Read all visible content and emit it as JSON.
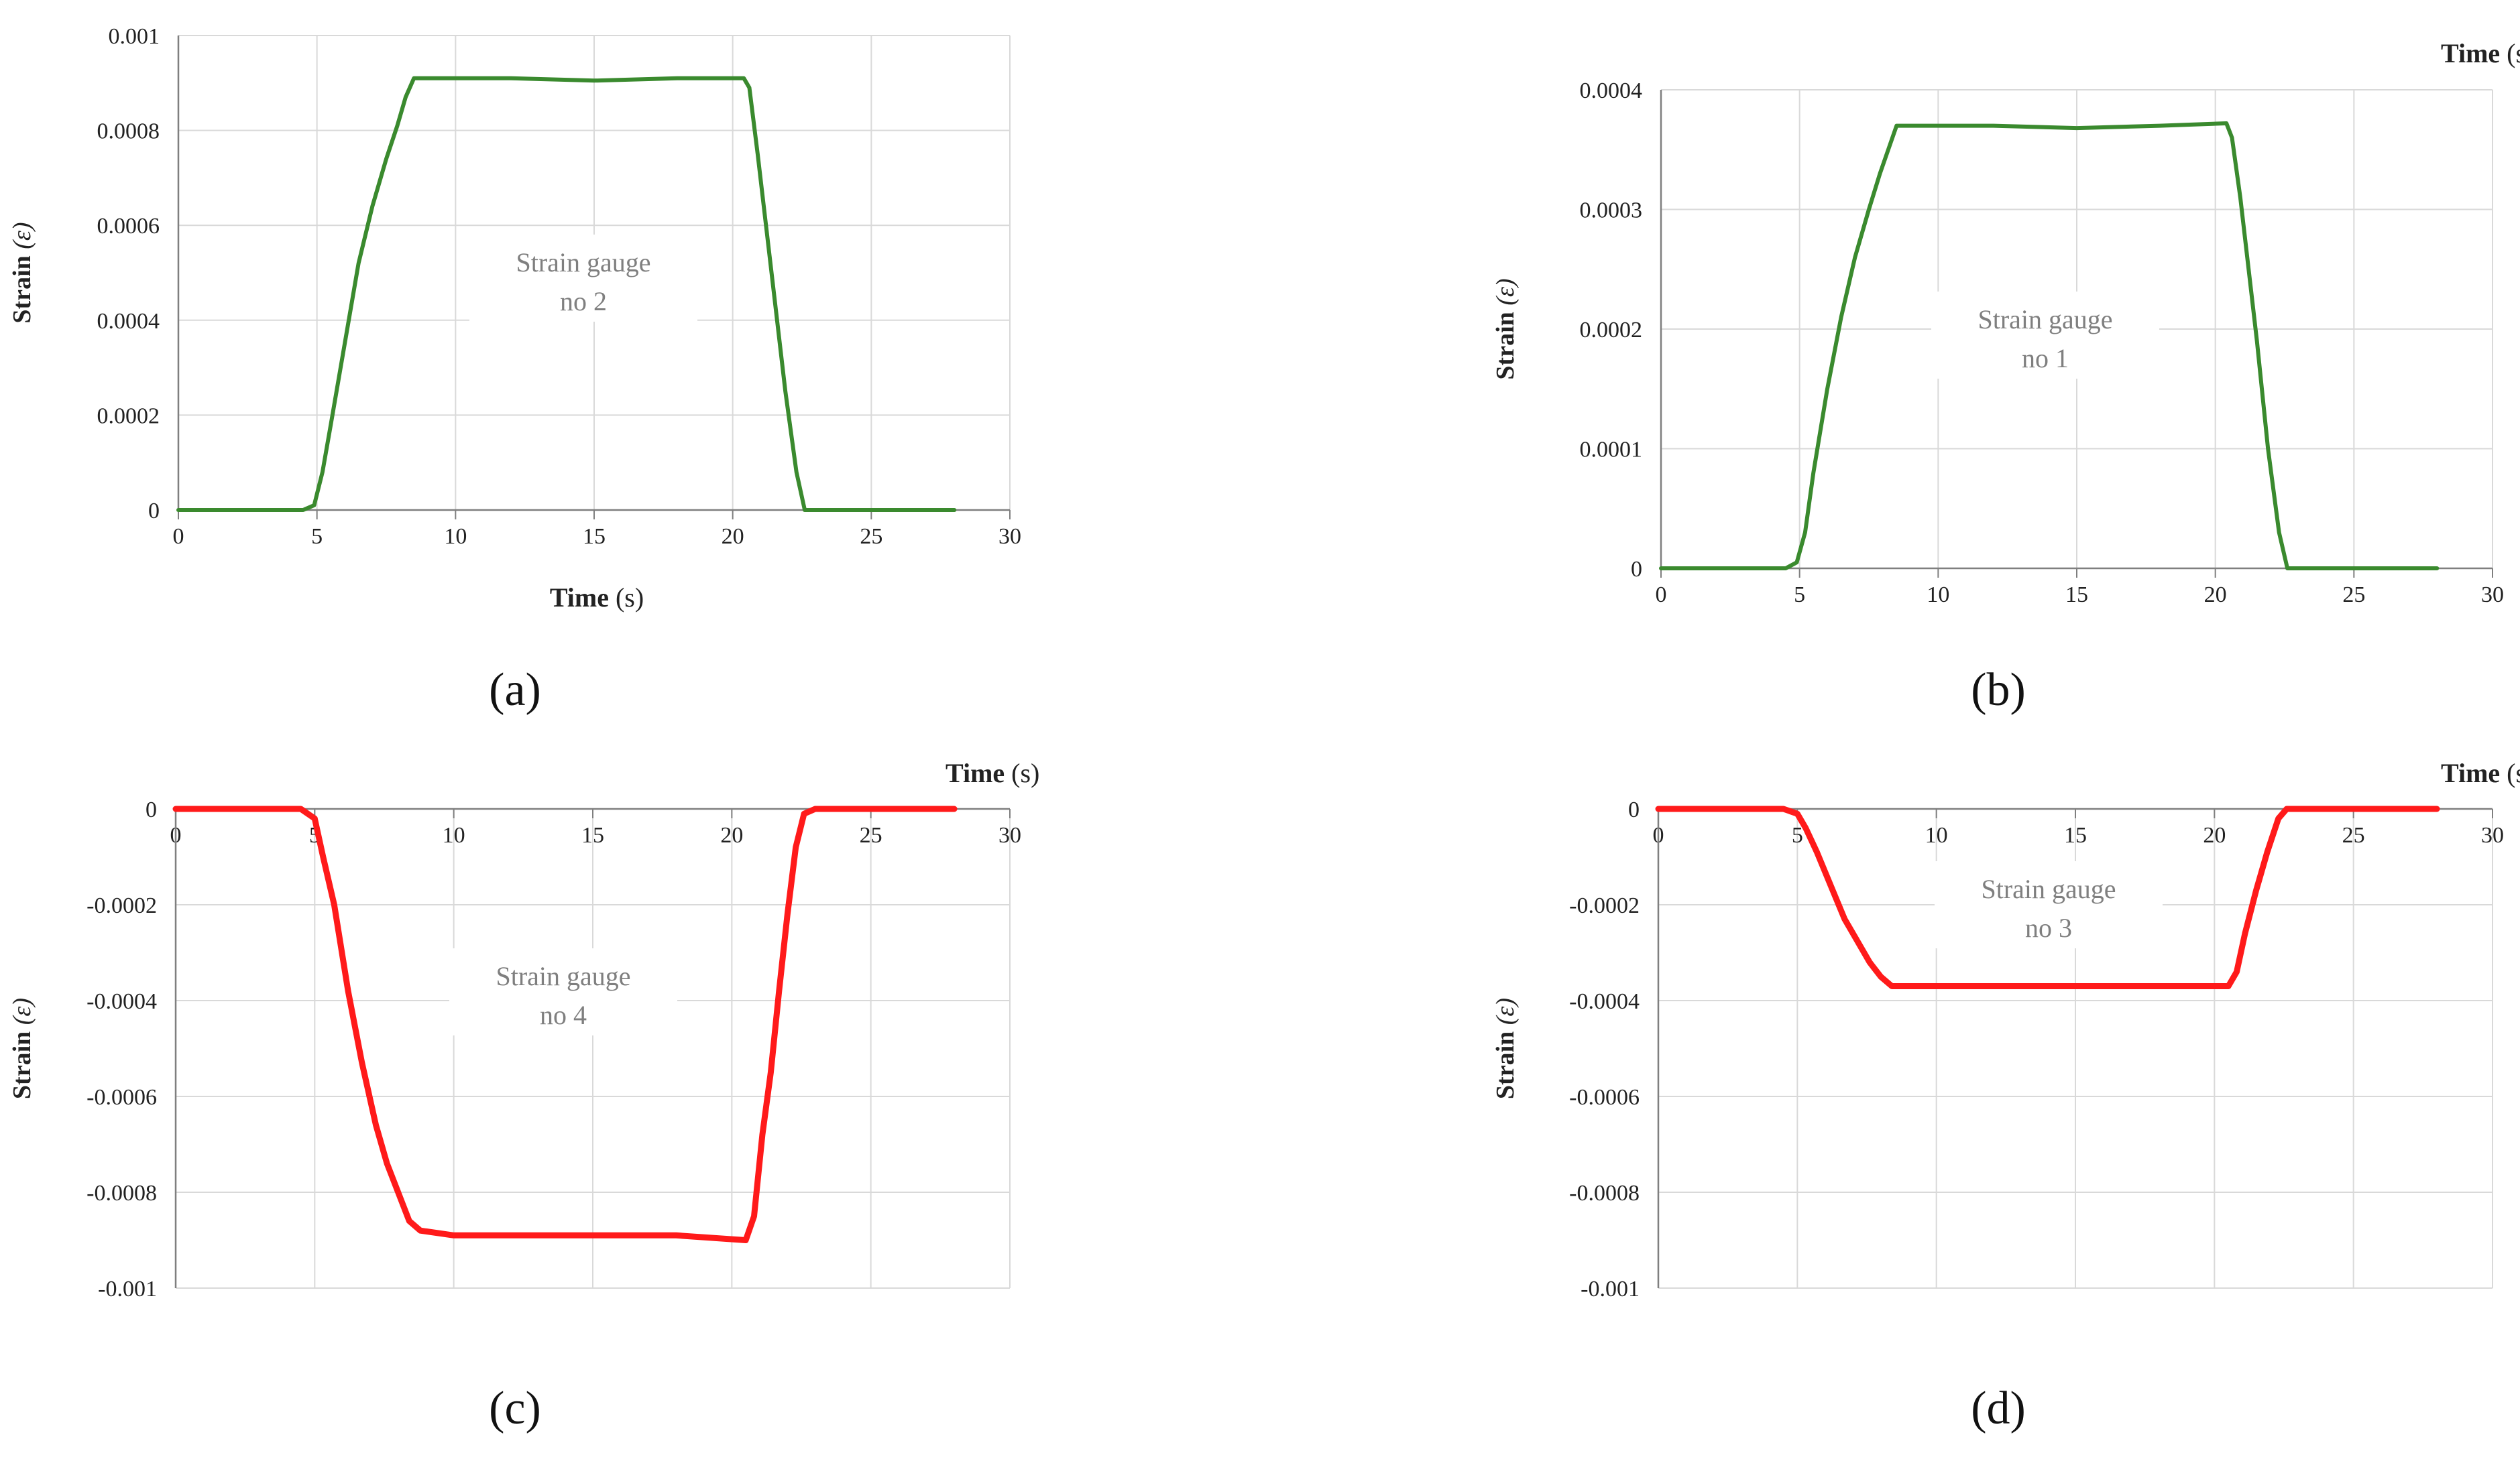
{
  "colors": {
    "green": "#3a8a2e",
    "red": "#ff1a1a",
    "grid": "#d9d9d9",
    "axis": "#7f7f7f"
  },
  "captions": [
    "(a)",
    "(b)",
    "(c)",
    "(d)"
  ],
  "chart_data": [
    {
      "type": "line",
      "xlabel": "Time (s)",
      "xlabel_bold": "Time",
      "xlabel_unit": "(s)",
      "ylabel": "Strain (ε)",
      "ylabel_bold": "Strain",
      "ylabel_unit": "(ε)",
      "annotation": [
        "Strain gauge",
        "no 2"
      ],
      "xlim": [
        0,
        30
      ],
      "ylim": [
        0,
        0.001
      ],
      "x_ticks": [
        "0",
        "5",
        "10",
        "15",
        "20",
        "25",
        "30"
      ],
      "y_ticks": [
        "0",
        "0.0002",
        "0.0004",
        "0.0006",
        "0.0008",
        "0.001"
      ],
      "grid": true,
      "color": "green",
      "series": [
        {
          "x": [
            0,
            4.5,
            4.9,
            5.2,
            5.5,
            6.0,
            6.5,
            7.0,
            7.5,
            7.9,
            8.2,
            8.5,
            9.0,
            12,
            15,
            18,
            20.4,
            20.6,
            20.9,
            21.2,
            21.5,
            21.9,
            22.3,
            22.6,
            23,
            25,
            28
          ],
          "y": [
            0,
            0,
            1e-05,
            8e-05,
            0.00018,
            0.00035,
            0.00052,
            0.00064,
            0.00074,
            0.00081,
            0.00087,
            0.00091,
            0.00091,
            0.00091,
            0.000905,
            0.00091,
            0.00091,
            0.00089,
            0.00075,
            0.0006,
            0.00045,
            0.00025,
            8e-05,
            0,
            0,
            0,
            0
          ]
        }
      ]
    },
    {
      "type": "line",
      "xlabel": "Time (s)",
      "xlabel_bold": "Time",
      "xlabel_unit": "(s)",
      "ylabel": "Strain (ε)",
      "ylabel_bold": "Strain",
      "ylabel_unit": "(ε)",
      "annotation": [
        "Strain gauge",
        "no 1"
      ],
      "xlim": [
        0,
        30
      ],
      "ylim": [
        0,
        0.0004
      ],
      "x_ticks": [
        "0",
        "5",
        "10",
        "15",
        "20",
        "25",
        "30"
      ],
      "y_ticks": [
        "0",
        "0.0001",
        "0.0002",
        "0.0003",
        "0.0004"
      ],
      "grid": true,
      "color": "green",
      "series": [
        {
          "x": [
            0,
            4.5,
            4.9,
            5.2,
            5.5,
            6.0,
            6.5,
            7.0,
            7.5,
            7.9,
            8.2,
            8.5,
            9.0,
            12,
            15,
            18,
            20.4,
            20.6,
            20.9,
            21.2,
            21.5,
            21.9,
            22.3,
            22.6,
            23,
            25,
            28
          ],
          "y": [
            0,
            0,
            5e-06,
            3e-05,
            8e-05,
            0.00015,
            0.00021,
            0.00026,
            0.0003,
            0.00033,
            0.00035,
            0.00037,
            0.00037,
            0.00037,
            0.000368,
            0.00037,
            0.000372,
            0.00036,
            0.00031,
            0.00025,
            0.00019,
            0.0001,
            3e-05,
            0,
            0,
            0,
            0
          ]
        }
      ]
    },
    {
      "type": "line",
      "xlabel": "Time (s)",
      "xlabel_bold": "Time",
      "xlabel_unit": "(s)",
      "ylabel": "Strain (ε)",
      "ylabel_bold": "Strain",
      "ylabel_unit": "(ε)",
      "annotation": [
        "Strain gauge",
        "no 4"
      ],
      "xlim": [
        0,
        30
      ],
      "ylim": [
        -0.001,
        0
      ],
      "x_ticks": [
        "0",
        "5",
        "10",
        "15",
        "20",
        "25",
        "30"
      ],
      "y_ticks": [
        "0",
        "-0.0002",
        "-0.0004",
        "-0.0006",
        "-0.0008",
        "-0.001"
      ],
      "grid": true,
      "color": "red",
      "series": [
        {
          "x": [
            0,
            4.5,
            5.0,
            5.3,
            5.7,
            6.2,
            6.7,
            7.2,
            7.6,
            8.0,
            8.4,
            8.8,
            10,
            15,
            18,
            20.5,
            20.8,
            21.1,
            21.4,
            21.7,
            22.0,
            22.3,
            22.6,
            23,
            25,
            28
          ],
          "y": [
            0,
            0,
            -2e-05,
            -0.0001,
            -0.0002,
            -0.00038,
            -0.00053,
            -0.00066,
            -0.00074,
            -0.0008,
            -0.00086,
            -0.00088,
            -0.00089,
            -0.00089,
            -0.00089,
            -0.0009,
            -0.00085,
            -0.00068,
            -0.00055,
            -0.00038,
            -0.00022,
            -8e-05,
            -1e-05,
            0,
            0,
            0
          ]
        }
      ]
    },
    {
      "type": "line",
      "xlabel": "Time (s)",
      "xlabel_bold": "Time",
      "xlabel_unit": "(s)",
      "ylabel": "Strain (ε)",
      "ylabel_bold": "Strain",
      "ylabel_unit": "(ε)",
      "annotation": [
        "Strain gauge",
        "no 3"
      ],
      "xlim": [
        0,
        30
      ],
      "ylim": [
        -0.001,
        0
      ],
      "x_ticks": [
        "0",
        "5",
        "10",
        "15",
        "20",
        "25",
        "30"
      ],
      "y_ticks": [
        "0",
        "-0.0002",
        "-0.0004",
        "-0.0006",
        "-0.0008",
        "-0.001"
      ],
      "grid": true,
      "color": "red",
      "series": [
        {
          "x": [
            0,
            4.5,
            5.0,
            5.3,
            5.7,
            6.2,
            6.7,
            7.2,
            7.6,
            8.0,
            8.4,
            8.8,
            10,
            15,
            18,
            20.5,
            20.8,
            21.1,
            21.5,
            21.9,
            22.3,
            22.6,
            23,
            25,
            28
          ],
          "y": [
            0,
            0,
            -1e-05,
            -4e-05,
            -9e-05,
            -0.00016,
            -0.00023,
            -0.00028,
            -0.00032,
            -0.00035,
            -0.00037,
            -0.00037,
            -0.00037,
            -0.00037,
            -0.00037,
            -0.00037,
            -0.00034,
            -0.00026,
            -0.00017,
            -9e-05,
            -2e-05,
            0,
            0,
            0,
            0
          ]
        }
      ]
    }
  ]
}
